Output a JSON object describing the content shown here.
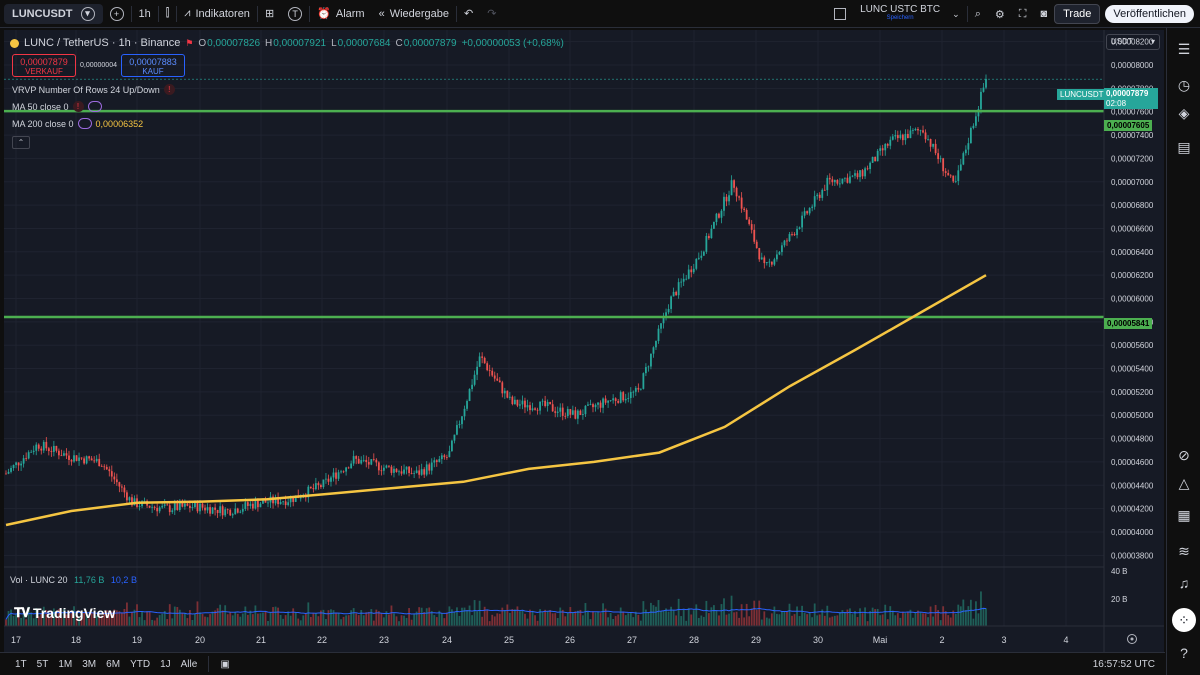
{
  "topbar": {
    "symbol": "LUNCUSDT",
    "interval": "1h",
    "indicators_label": "Indikatoren",
    "alarm_label": "Alarm",
    "replay_label": "Wiedergabe",
    "compare_symbols": "LUNC USTC BTC",
    "compare_sub": "Speichern",
    "trade_label": "Trade",
    "publish_label": "Veröffentlichen"
  },
  "legend": {
    "title": "LUNC / TetherUS · 1h · Binance",
    "open_label": "O",
    "open": "0,00007826",
    "high_label": "H",
    "high": "0,00007921",
    "low_label": "L",
    "low": "0,00007684",
    "close_label": "C",
    "close": "0,00007879",
    "change": "+0,00000053 (+0,68%)",
    "sell_value": "0,00007879",
    "sell_label": "VERKAUF",
    "spread": "0,00000004",
    "buy_value": "0,00007883",
    "buy_label": "KAUF",
    "vrvp": "VRVP Number Of Rows 24 Up/Down",
    "ma50": "MA 50 close 0",
    "ma200": "MA 200 close 0",
    "ma200_value": "0,00006352",
    "vol_label": "Vol · LUNC 20",
    "vol_value1": "11,76 B",
    "vol_value2": "10,2 B"
  },
  "currency_select": "USDT",
  "price_axis": [
    "0,00008200",
    "0,00008000",
    "0,00007800",
    "0,00007600",
    "0,00007400",
    "0,00007200",
    "0,00007000",
    "0,00006800",
    "0,00006600",
    "0,00006400",
    "0,00006200",
    "0,00006000",
    "0,00005800",
    "0,00005600",
    "0,00005400",
    "0,00005200",
    "0,00005000",
    "0,00004800",
    "0,00004600",
    "0,00004400",
    "0,00004200",
    "0,00004000",
    "0,00003800"
  ],
  "volume_axis": [
    "40 B",
    "20 B"
  ],
  "time_axis": [
    "17",
    "18",
    "19",
    "20",
    "21",
    "22",
    "23",
    "24",
    "25",
    "26",
    "27",
    "28",
    "29",
    "30",
    "Mai",
    "2",
    "3",
    "4"
  ],
  "badges": {
    "symbol": "LUNCUSDT",
    "current_price": "0,00007879",
    "countdown": "02:08",
    "resistance": "0,00007605",
    "support": "0,00005841"
  },
  "colors": {
    "up": "#26a69a",
    "down": "#ef5350",
    "ma200": "#f5c542",
    "levels": "#4caf50",
    "volume_ma": "#2962ff"
  },
  "chart_data": {
    "type": "line",
    "title": "LUNC / TetherUS · 1h · Binance",
    "series": [
      {
        "name": "LUNC / TetherUS",
        "x": [
          "17",
          "17",
          "18",
          "18",
          "19",
          "19",
          "20",
          "20",
          "21",
          "21",
          "22",
          "22",
          "23",
          "23",
          "24",
          "24",
          "25",
          "25",
          "26",
          "26",
          "27",
          "27",
          "28",
          "28",
          "29",
          "29",
          "30",
          "30",
          "Mai",
          "Mai",
          "2",
          "2"
        ],
        "values": [
          4.5e-05,
          4.75e-05,
          4.65e-05,
          4.6e-05,
          4.25e-05,
          4.2e-05,
          4.22e-05,
          4.18e-05,
          4.25e-05,
          4.28e-05,
          4.4e-05,
          4.62e-05,
          4.55e-05,
          4.5e-05,
          4.65e-05,
          5.5e-05,
          5.1e-05,
          5.08e-05,
          5e-05,
          5.12e-05,
          5.2e-05,
          5.98e-05,
          6.4e-05,
          7e-05,
          6.25e-05,
          6.6e-05,
          7e-05,
          7.05e-05,
          7.35e-05,
          7.45e-05,
          6.95e-05,
          7.88e-05
        ]
      },
      {
        "name": "MA 200",
        "x": [
          "17",
          "18",
          "19",
          "20",
          "21",
          "22",
          "23",
          "24",
          "25",
          "26",
          "27",
          "28",
          "29",
          "30",
          "Mai",
          "2"
        ],
        "values": [
          4.06e-05,
          4.18e-05,
          4.25e-05,
          4.26e-05,
          4.28e-05,
          4.33e-05,
          4.38e-05,
          4.43e-05,
          4.54e-05,
          4.6e-05,
          4.68e-05,
          4.9e-05,
          5.25e-05,
          5.56e-05,
          5.88e-05,
          6.2e-05
        ]
      }
    ],
    "horizontal_levels": [
      7.605e-05,
      5.841e-05
    ],
    "ylim": [
      3.7e-05,
      8.3e-05
    ],
    "volume_ylim": [
      0,
      40
    ]
  }
}
